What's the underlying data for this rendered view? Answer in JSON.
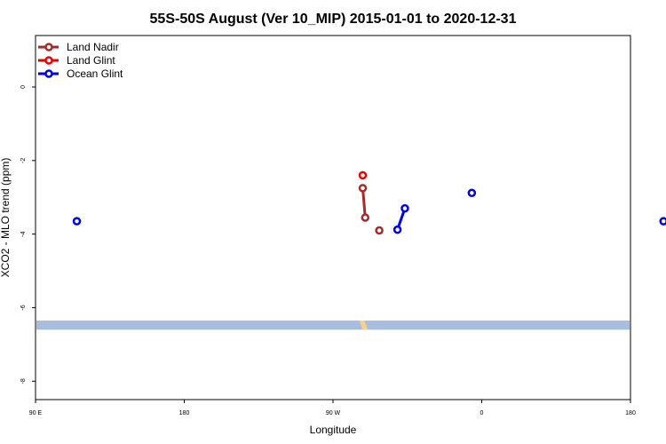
{
  "chart_data": {
    "type": "line",
    "title": "55S-50S August (Ver 10_MIP)   2015-01-01 to 2020-12-31",
    "xlabel": "Longitude",
    "ylabel": "XCO2 - MLO trend (ppm)",
    "xlim": [
      90,
      450
    ],
    "ylim": [
      -8.5,
      1.4
    ],
    "x_ticks": [
      {
        "value": 90,
        "label": "90 E"
      },
      {
        "value": 180,
        "label": "180"
      },
      {
        "value": 270,
        "label": "90 W"
      },
      {
        "value": 360,
        "label": "0"
      },
      {
        "value": 450,
        "label": "180"
      }
    ],
    "y_ticks": [
      {
        "value": 0,
        "label": "0"
      },
      {
        "value": -2,
        "label": "-2"
      },
      {
        "value": -4,
        "label": "-4"
      },
      {
        "value": -6,
        "label": "-6"
      },
      {
        "value": -8,
        "label": "-8"
      }
    ],
    "legend_position": "top-left",
    "series": [
      {
        "name": "Land Nadir",
        "color": "#a52a2a",
        "points": [
          [
            288.0,
            -2.75
          ],
          [
            289.5,
            -3.55
          ]
        ],
        "isolated": [
          [
            298.0,
            -3.9
          ]
        ]
      },
      {
        "name": "Land Glint",
        "color": "#ee0000",
        "points": [],
        "isolated": [
          [
            288.0,
            -2.4
          ]
        ]
      },
      {
        "name": "Ocean Glint",
        "color": "#0000ee",
        "points": [
          [
            309.0,
            -3.88
          ],
          [
            313.5,
            -3.3
          ]
        ],
        "isolated": [
          [
            115.0,
            -3.65
          ],
          [
            354.0,
            -2.88
          ],
          [
            470.0,
            -3.65
          ]
        ]
      }
    ],
    "land_band": {
      "y_top": -6.35,
      "y_bottom": -6.6,
      "color": "#a9bedc",
      "land_color": "#f5d38a"
    }
  }
}
